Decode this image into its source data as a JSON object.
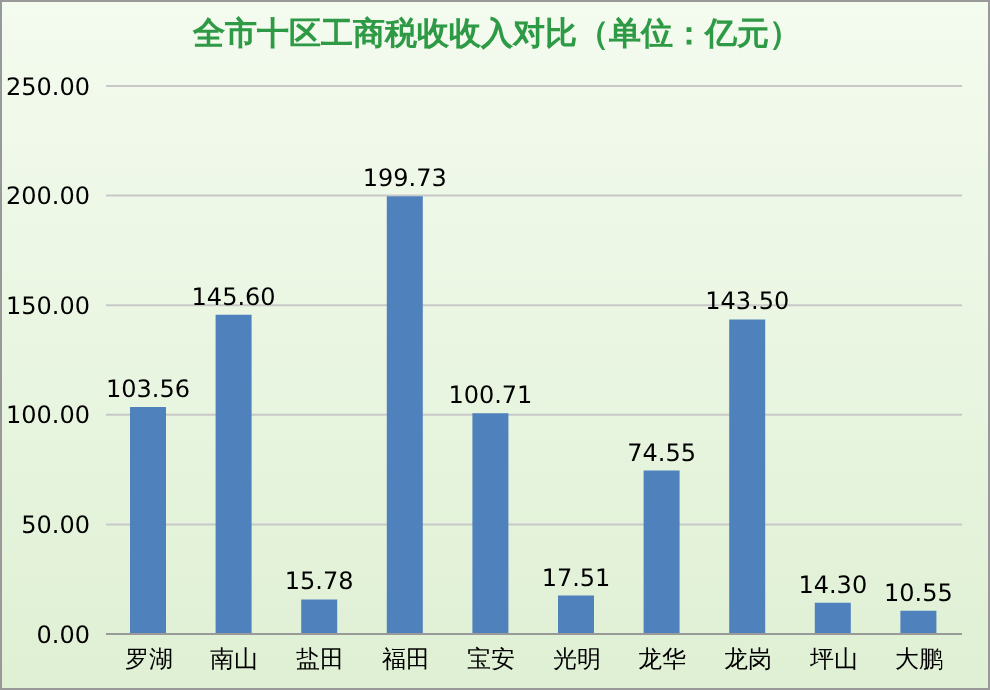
{
  "chart_data": {
    "type": "bar",
    "title": "全市十区工商税收收入对比（单位：亿元）",
    "categories": [
      "罗湖",
      "南山",
      "盐田",
      "福田",
      "宝安",
      "光明",
      "龙华",
      "龙岗",
      "坪山",
      "大鹏"
    ],
    "values": [
      103.56,
      145.6,
      15.78,
      199.73,
      100.71,
      17.51,
      74.55,
      143.5,
      14.3,
      10.55
    ],
    "value_labels": [
      "103.56",
      "145.60",
      "15.78",
      "199.73",
      "100.71",
      "17.51",
      "74.55",
      "143.50",
      "14.30",
      "10.55"
    ],
    "color": "#4f81bd",
    "ylim": [
      0,
      250
    ],
    "yticks": [
      {
        "value": 0,
        "label": "0.00"
      },
      {
        "value": 50,
        "label": "50.00"
      },
      {
        "value": 100,
        "label": "100.00"
      },
      {
        "value": 150,
        "label": "150.00"
      },
      {
        "value": 200,
        "label": "200.00"
      },
      {
        "value": 250,
        "label": "250.00"
      }
    ],
    "grid": "y",
    "legend": false
  }
}
